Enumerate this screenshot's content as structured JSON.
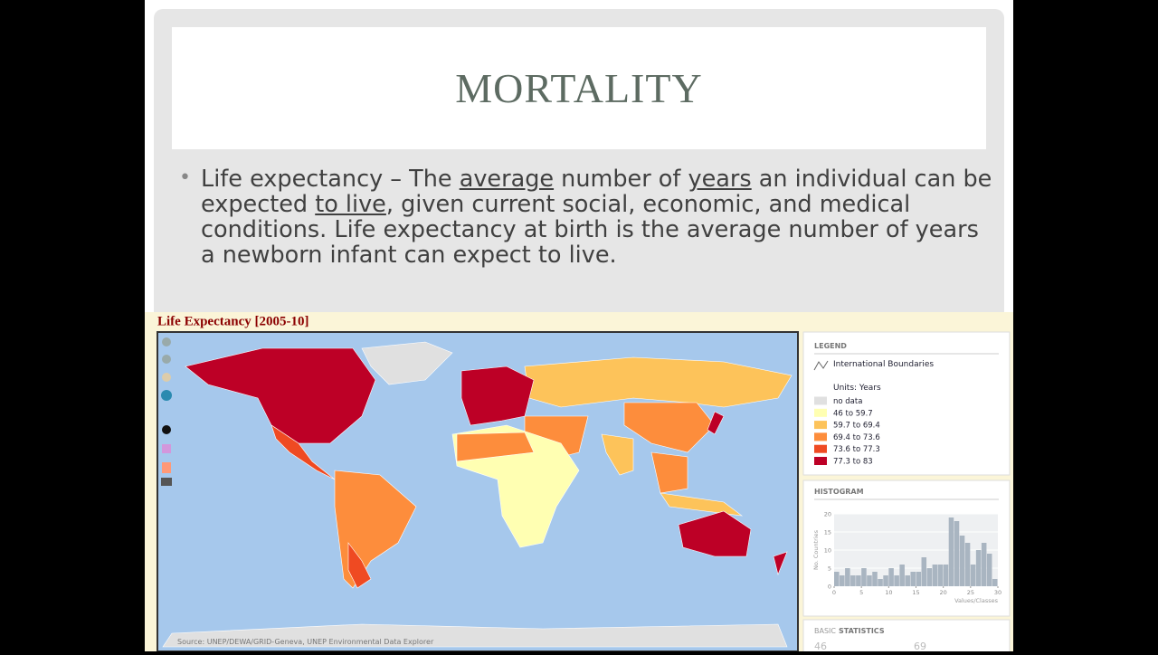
{
  "slide": {
    "title": "MORTALITY",
    "bullet": [
      {
        "text": "Life expectancy – The ",
        "underline": false
      },
      {
        "text": "average",
        "underline": true
      },
      {
        "text": " number of ",
        "underline": false
      },
      {
        "text": "years",
        "underline": true
      },
      {
        "text": " an individual can be expected ",
        "underline": false
      },
      {
        "text": "to live",
        "underline": true
      },
      {
        "text": ", given current social, economic, and medical conditions. Life expectancy at birth is the average number of years a newborn infant can expect to live.",
        "underline": false
      }
    ]
  },
  "map": {
    "title": "Life Expectancy [2005-10]",
    "source": "Source: UNEP/DEWA/GRID-Geneva, UNEP Environmental Data Explorer"
  },
  "legend": {
    "heading": "LEGEND",
    "boundaries": "International Boundaries",
    "units": "Units: Years",
    "items": [
      {
        "label": "no data",
        "color": "#e0e0e0"
      },
      {
        "label": "46 to 59.7",
        "color": "#ffffb2"
      },
      {
        "label": "59.7 to 69.4",
        "color": "#fdc35a"
      },
      {
        "label": "69.4 to 73.6",
        "color": "#fd8d3c"
      },
      {
        "label": "73.6 to 77.3",
        "color": "#ef4a22"
      },
      {
        "label": "77.3 to 83",
        "color": "#bd0026"
      }
    ]
  },
  "chart_data": {
    "type": "histogram",
    "title": "HISTOGRAM",
    "ylabel": "No. Countries",
    "xlabel": "Values/Classes",
    "bins": [
      0,
      1,
      2,
      3,
      4,
      5,
      6,
      7,
      8,
      9,
      10,
      11,
      12,
      13,
      14,
      15,
      16,
      17,
      18,
      19,
      20,
      21,
      22,
      23,
      24,
      25,
      26,
      27,
      28,
      29,
      30
    ],
    "values": [
      4,
      3,
      5,
      3,
      3,
      5,
      3,
      4,
      2,
      3,
      5,
      3,
      6,
      3,
      4,
      4,
      8,
      5,
      6,
      6,
      6,
      19,
      18,
      14,
      12,
      6,
      10,
      12,
      9,
      2
    ],
    "color": "#a9b5c1",
    "xlim": [
      0,
      30
    ],
    "ylim": [
      0,
      20
    ],
    "xticks": [
      0,
      5,
      10,
      15,
      20,
      25,
      30
    ],
    "yticks": [
      0,
      5,
      10,
      15,
      20
    ],
    "grid": true
  },
  "stats": {
    "heading_prefix": "BASIC",
    "heading": "STATISTICS",
    "values": [
      "46",
      "69"
    ]
  }
}
